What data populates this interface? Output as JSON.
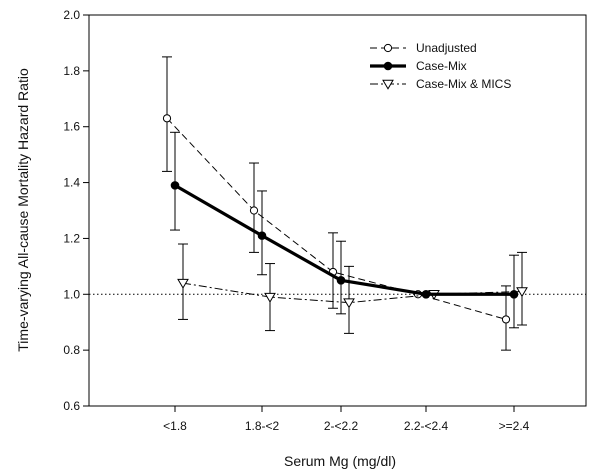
{
  "chart_data": {
    "type": "line",
    "title": "",
    "xlabel": "Serum Mg (mg/dl)",
    "ylabel": "Time-varying All-cause Mortality Hazard Ratio",
    "categories": [
      "<1.8",
      "1.8-<2",
      "2-<2.2",
      "2.2-<2.4",
      ">=2.4"
    ],
    "ylim": [
      0.6,
      2.0
    ],
    "yticks": [
      "0.6",
      "0.8",
      "1.0",
      "1.2",
      "1.4",
      "1.6",
      "1.8",
      "2.0"
    ],
    "reference_line": 1.0,
    "grid": false,
    "legend_position": "top-right",
    "series": [
      {
        "name": "Unadjusted",
        "style": "dashed",
        "marker": "open-circle",
        "values": [
          1.63,
          1.3,
          1.08,
          1.0,
          0.91
        ],
        "ci_low": [
          1.44,
          1.15,
          0.95,
          1.0,
          0.8
        ],
        "ci_high": [
          1.85,
          1.47,
          1.22,
          1.0,
          1.03
        ]
      },
      {
        "name": "Case-Mix",
        "style": "solid-bold",
        "marker": "filled-circle",
        "values": [
          1.39,
          1.21,
          1.05,
          1.0,
          1.0
        ],
        "ci_low": [
          1.23,
          1.07,
          0.93,
          1.0,
          0.88
        ],
        "ci_high": [
          1.58,
          1.37,
          1.19,
          1.0,
          1.14
        ]
      },
      {
        "name": "Case-Mix & MICS",
        "style": "dash-dot",
        "marker": "open-triangle-down",
        "values": [
          1.04,
          0.99,
          0.97,
          1.0,
          1.01
        ],
        "ci_low": [
          0.91,
          0.87,
          0.86,
          1.0,
          0.89
        ],
        "ci_high": [
          1.18,
          1.11,
          1.1,
          1.0,
          1.15
        ]
      }
    ]
  }
}
